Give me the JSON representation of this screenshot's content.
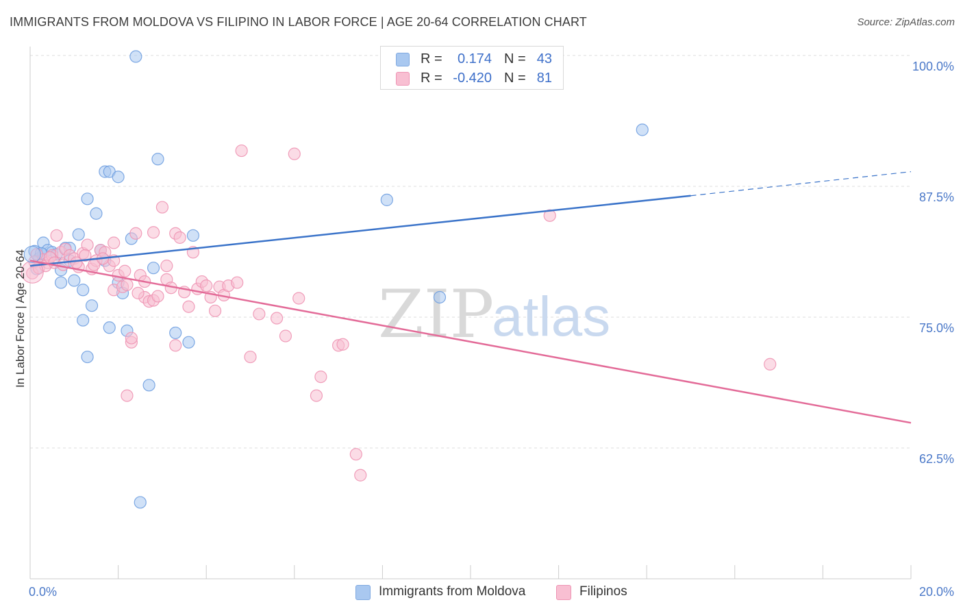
{
  "header": {
    "title": "IMMIGRANTS FROM MOLDOVA VS FILIPINO IN LABOR FORCE | AGE 20-64 CORRELATION CHART",
    "source": "Source: ZipAtlas.com"
  },
  "watermark": {
    "part1": "ZIP",
    "part2": "atlas"
  },
  "legend": {
    "rows": [
      {
        "r_label": "R =",
        "r_value": "0.174",
        "n_label": "N =",
        "n_value": "43",
        "color": "#a9c8f0",
        "stroke": "#7ea8e0"
      },
      {
        "r_label": "R =",
        "r_value": "-0.420",
        "n_label": "N =",
        "n_value": "81",
        "color": "#f8bfd2",
        "stroke": "#ee93b3"
      }
    ]
  },
  "bottom_legend": {
    "items": [
      {
        "label": "Immigrants from Moldova",
        "color": "#a9c8f0",
        "stroke": "#7ea8e0"
      },
      {
        "label": "Filipinos",
        "color": "#f8bfd2",
        "stroke": "#ee93b3"
      }
    ]
  },
  "chart_data": {
    "type": "scatter",
    "title": "IMMIGRANTS FROM MOLDOVA VS FILIPINO IN LABOR FORCE | AGE 20-64 CORRELATION CHART",
    "xlabel": "",
    "ylabel": "In Labor Force | Age 20-64",
    "xlim": [
      0,
      20
    ],
    "ylim": [
      52.5,
      102
    ],
    "x_tick_labels": [
      {
        "value": 0,
        "label": "0.0%"
      },
      {
        "value": 20,
        "label": "20.0%"
      }
    ],
    "y_tick_labels": [
      {
        "value": 100,
        "label": "100.0%"
      },
      {
        "value": 87.5,
        "label": "87.5%"
      },
      {
        "value": 75,
        "label": "75.0%"
      },
      {
        "value": 62.5,
        "label": "62.5%"
      }
    ],
    "grid": true,
    "legend_position": "top-center",
    "series": [
      {
        "name": "Immigrants from Moldova",
        "color": "#6f9fe0",
        "fill": "#a9c8f0",
        "line_color": "#3a73c9",
        "trend": {
          "x_start": 0,
          "y_start": 79.9,
          "x_solid_end": 15,
          "y_solid_end": 86.6,
          "x_end": 20,
          "y_end": 88.9
        },
        "points": [
          [
            0.1,
            81.3
          ],
          [
            0.2,
            80.6
          ],
          [
            0.3,
            81.0
          ],
          [
            0.3,
            82.1
          ],
          [
            0.4,
            81.4
          ],
          [
            0.5,
            81.2
          ],
          [
            0.6,
            81.0
          ],
          [
            0.7,
            79.5
          ],
          [
            0.7,
            78.3
          ],
          [
            0.8,
            81.6
          ],
          [
            0.9,
            81.6
          ],
          [
            0.9,
            80.4
          ],
          [
            1.0,
            78.5
          ],
          [
            1.1,
            82.9
          ],
          [
            1.2,
            74.7
          ],
          [
            1.2,
            77.6
          ],
          [
            1.3,
            71.2
          ],
          [
            1.3,
            86.3
          ],
          [
            1.4,
            76.1
          ],
          [
            1.5,
            84.9
          ],
          [
            1.6,
            81.4
          ],
          [
            1.7,
            80.4
          ],
          [
            1.7,
            88.9
          ],
          [
            1.8,
            88.9
          ],
          [
            1.8,
            74.0
          ],
          [
            2.0,
            88.4
          ],
          [
            2.0,
            78.3
          ],
          [
            2.1,
            77.3
          ],
          [
            2.2,
            73.7
          ],
          [
            2.3,
            82.5
          ],
          [
            2.4,
            99.9
          ],
          [
            2.5,
            57.3
          ],
          [
            2.7,
            68.5
          ],
          [
            2.8,
            79.7
          ],
          [
            2.9,
            90.1
          ],
          [
            3.3,
            73.5
          ],
          [
            3.6,
            72.6
          ],
          [
            3.7,
            82.8
          ],
          [
            8.1,
            86.2
          ],
          [
            9.3,
            76.9
          ],
          [
            13.9,
            92.9
          ],
          [
            0.15,
            79.6
          ],
          [
            0.25,
            81.1
          ]
        ]
      },
      {
        "name": "Filipinos",
        "color": "#ee93b3",
        "fill": "#f8bfd2",
        "line_color": "#e36b98",
        "trend": {
          "x_start": 0,
          "y_start": 80.4,
          "x_end": 20,
          "y_end": 64.9
        },
        "points": [
          [
            0.05,
            79.2
          ],
          [
            0.1,
            80.3
          ],
          [
            0.2,
            79.7
          ],
          [
            0.3,
            80.5
          ],
          [
            0.4,
            80.2
          ],
          [
            0.5,
            80.9
          ],
          [
            0.6,
            82.8
          ],
          [
            0.7,
            81.2
          ],
          [
            0.8,
            81.5
          ],
          [
            0.9,
            80.9
          ],
          [
            1.0,
            80.6
          ],
          [
            1.1,
            79.8
          ],
          [
            1.2,
            81.1
          ],
          [
            1.3,
            81.9
          ],
          [
            1.4,
            79.6
          ],
          [
            1.5,
            80.4
          ],
          [
            1.6,
            81.4
          ],
          [
            1.7,
            81.2
          ],
          [
            1.8,
            79.9
          ],
          [
            1.9,
            80.4
          ],
          [
            1.9,
            77.6
          ],
          [
            1.9,
            82.1
          ],
          [
            2.0,
            79.0
          ],
          [
            2.1,
            77.9
          ],
          [
            2.2,
            78.1
          ],
          [
            2.2,
            67.5
          ],
          [
            2.3,
            72.6
          ],
          [
            2.3,
            73.0
          ],
          [
            2.4,
            83.0
          ],
          [
            2.5,
            79.0
          ],
          [
            2.6,
            76.9
          ],
          [
            2.6,
            78.4
          ],
          [
            2.7,
            76.5
          ],
          [
            2.8,
            83.1
          ],
          [
            2.8,
            76.6
          ],
          [
            2.9,
            77.0
          ],
          [
            3.0,
            85.5
          ],
          [
            3.1,
            79.9
          ],
          [
            3.1,
            78.6
          ],
          [
            3.2,
            77.8
          ],
          [
            3.3,
            83.0
          ],
          [
            3.3,
            72.3
          ],
          [
            3.4,
            82.6
          ],
          [
            3.5,
            77.4
          ],
          [
            3.6,
            76.0
          ],
          [
            3.7,
            81.2
          ],
          [
            3.8,
            77.7
          ],
          [
            3.9,
            78.4
          ],
          [
            4.0,
            78.0
          ],
          [
            4.1,
            76.9
          ],
          [
            4.2,
            75.6
          ],
          [
            4.3,
            77.9
          ],
          [
            4.4,
            77.1
          ],
          [
            4.5,
            78.0
          ],
          [
            4.7,
            78.3
          ],
          [
            4.8,
            90.9
          ],
          [
            5.0,
            71.2
          ],
          [
            5.2,
            75.3
          ],
          [
            5.6,
            74.9
          ],
          [
            5.8,
            73.2
          ],
          [
            6.0,
            90.6
          ],
          [
            6.1,
            76.8
          ],
          [
            6.5,
            67.5
          ],
          [
            6.6,
            69.3
          ],
          [
            7.0,
            72.3
          ],
          [
            7.1,
            72.4
          ],
          [
            7.4,
            61.9
          ],
          [
            7.5,
            59.9
          ],
          [
            11.8,
            84.7
          ],
          [
            16.8,
            70.5
          ],
          [
            0.15,
            81.0
          ],
          [
            0.35,
            79.9
          ],
          [
            0.45,
            80.7
          ],
          [
            0.55,
            80.2
          ],
          [
            0.75,
            80.0
          ],
          [
            1.05,
            80.2
          ],
          [
            1.25,
            80.9
          ],
          [
            1.45,
            80.0
          ],
          [
            1.65,
            80.6
          ],
          [
            2.15,
            79.4
          ],
          [
            2.45,
            77.3
          ]
        ]
      }
    ]
  }
}
